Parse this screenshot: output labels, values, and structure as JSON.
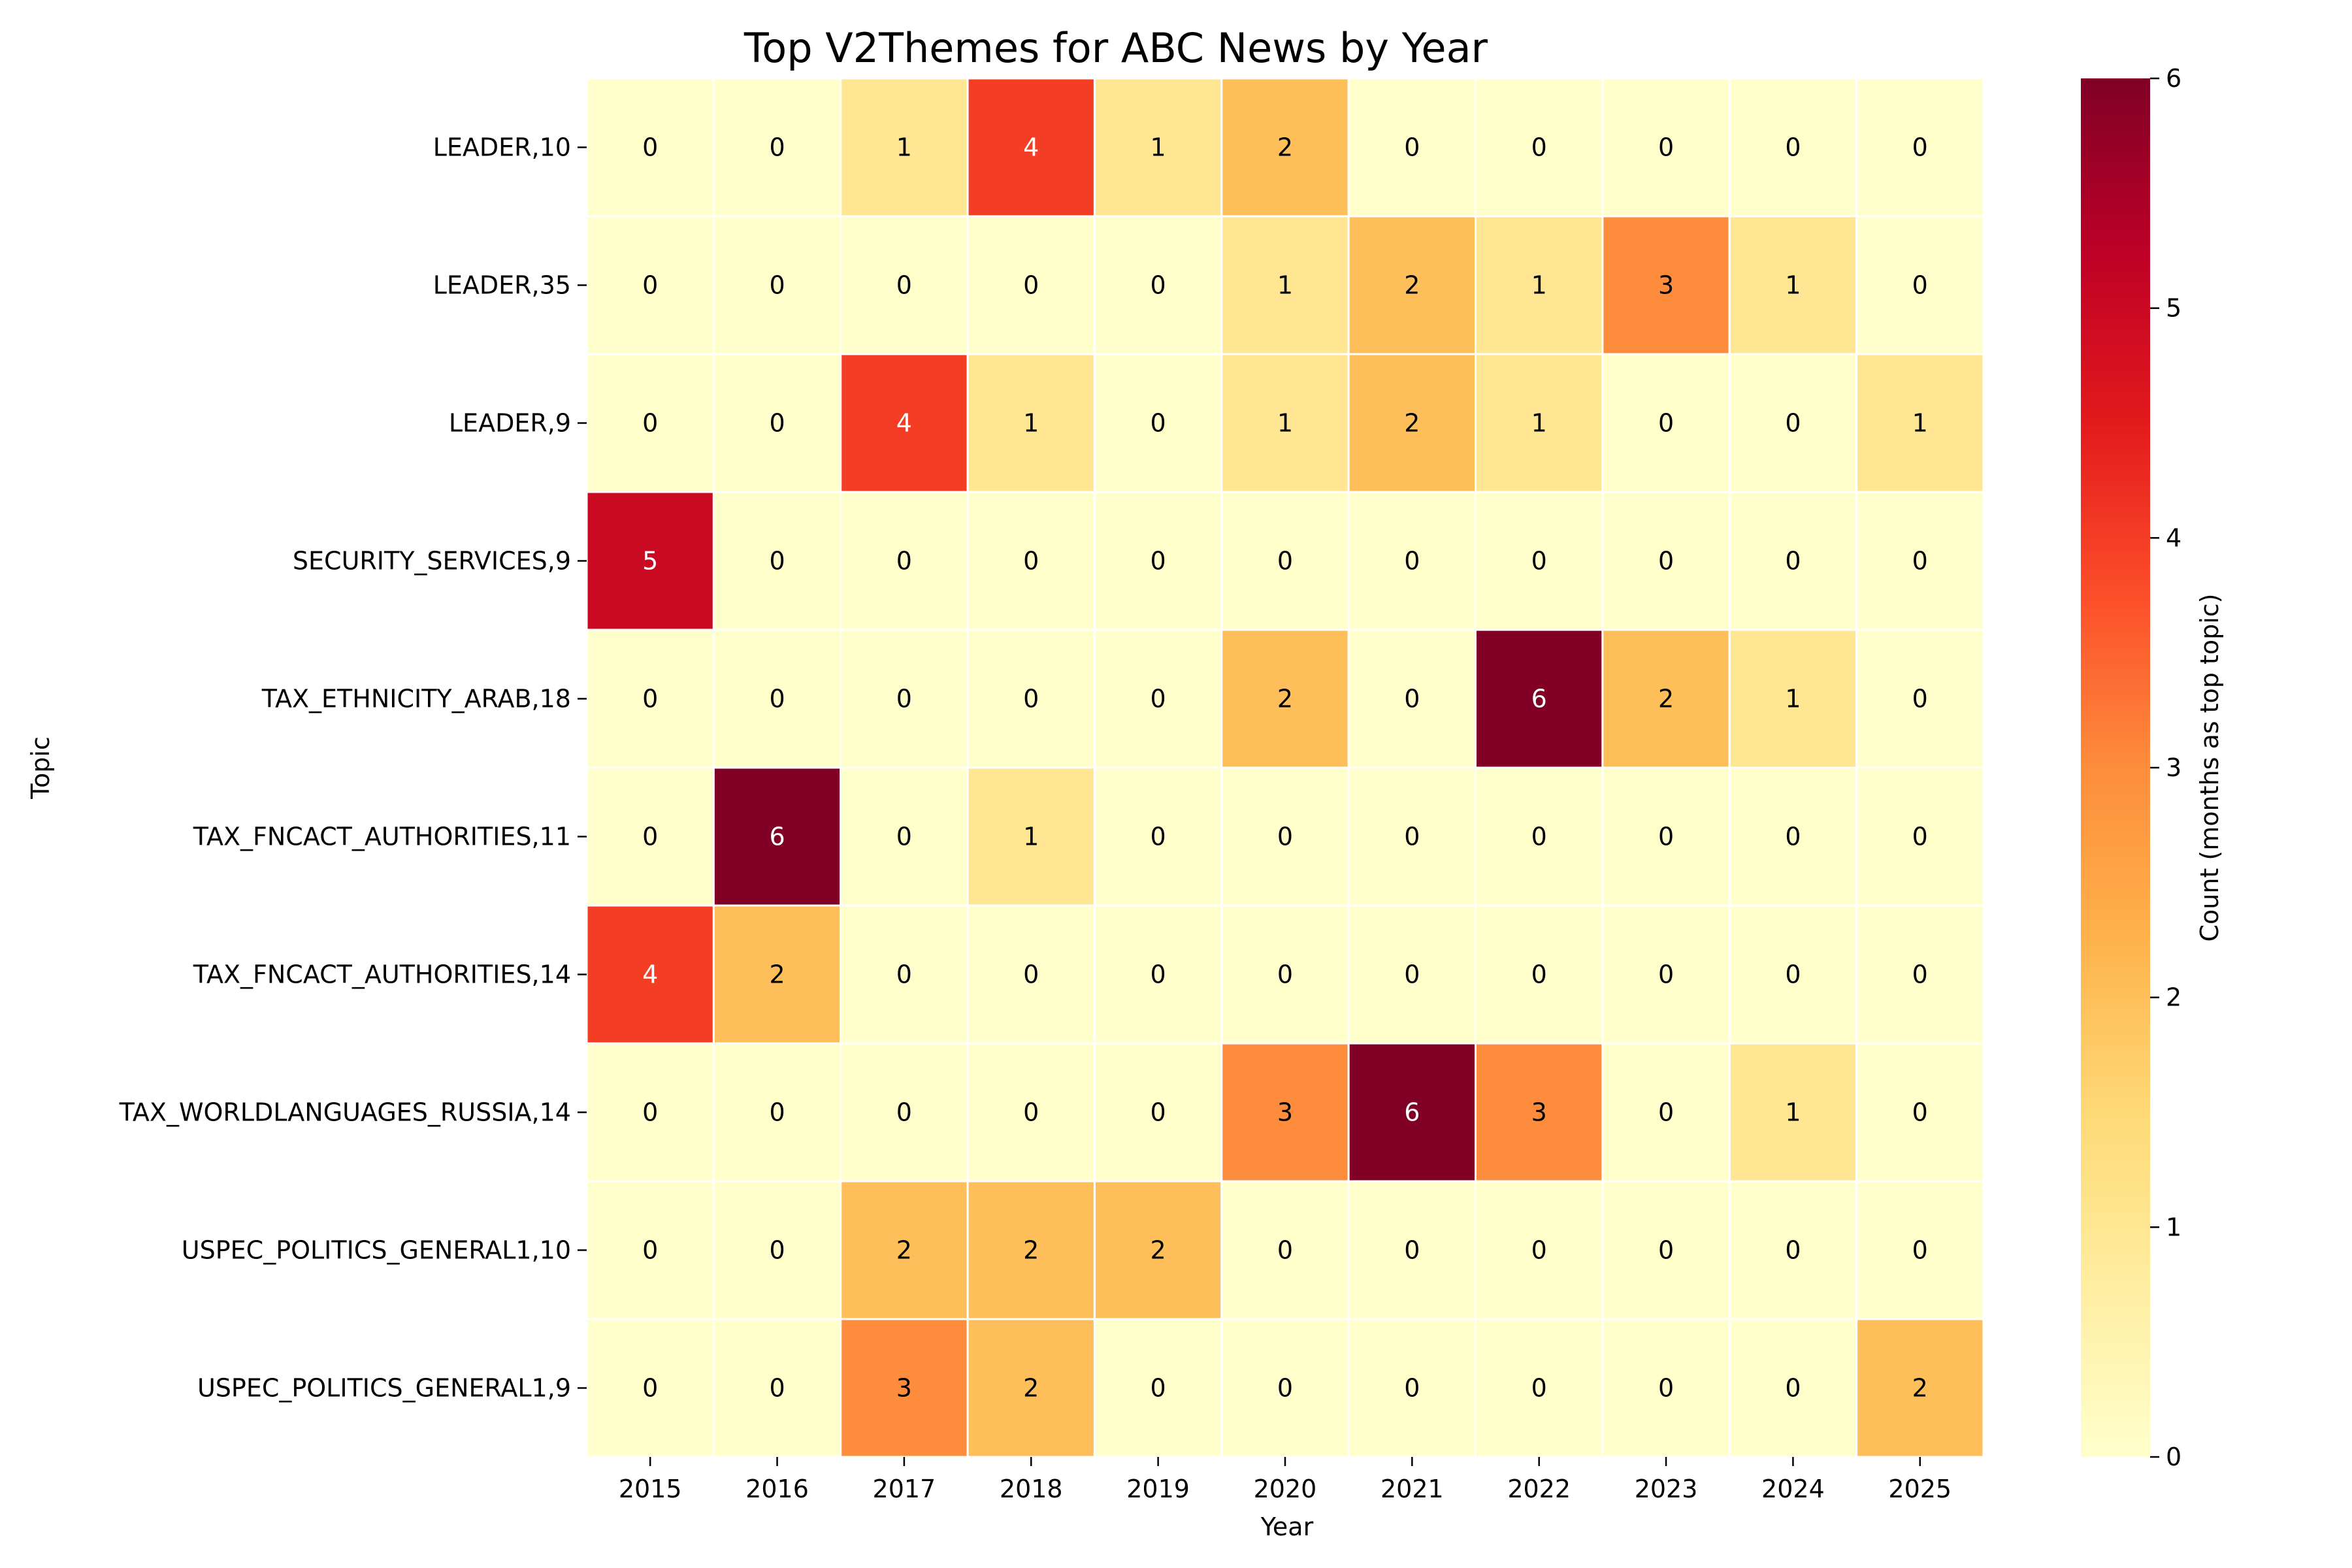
{
  "chart_data": {
    "type": "heatmap",
    "title": "Top V2Themes for ABC News by Year",
    "xlabel": "Year",
    "ylabel": "Topic",
    "x": [
      "2015",
      "2016",
      "2017",
      "2018",
      "2019",
      "2020",
      "2021",
      "2022",
      "2023",
      "2024",
      "2025"
    ],
    "y": [
      "LEADER,10",
      "LEADER,35",
      "LEADER,9",
      "SECURITY_SERVICES,9",
      "TAX_ETHNICITY_ARAB,18",
      "TAX_FNCACT_AUTHORITIES,11",
      "TAX_FNCACT_AUTHORITIES,14",
      "TAX_WORLDLANGUAGES_RUSSIA,14",
      "USPEC_POLITICS_GENERAL1,10",
      "USPEC_POLITICS_GENERAL1,9"
    ],
    "values": [
      [
        0,
        0,
        1,
        4,
        1,
        2,
        0,
        0,
        0,
        0,
        0
      ],
      [
        0,
        0,
        0,
        0,
        0,
        1,
        2,
        1,
        3,
        1,
        0
      ],
      [
        0,
        0,
        4,
        1,
        0,
        1,
        2,
        1,
        0,
        0,
        1
      ],
      [
        5,
        0,
        0,
        0,
        0,
        0,
        0,
        0,
        0,
        0,
        0
      ],
      [
        0,
        0,
        0,
        0,
        0,
        2,
        0,
        6,
        2,
        1,
        0
      ],
      [
        0,
        6,
        0,
        1,
        0,
        0,
        0,
        0,
        0,
        0,
        0
      ],
      [
        4,
        2,
        0,
        0,
        0,
        0,
        0,
        0,
        0,
        0,
        0
      ],
      [
        0,
        0,
        0,
        0,
        0,
        3,
        6,
        3,
        0,
        1,
        0
      ],
      [
        0,
        0,
        2,
        2,
        2,
        0,
        0,
        0,
        0,
        0,
        0
      ],
      [
        0,
        0,
        3,
        2,
        0,
        0,
        0,
        0,
        0,
        0,
        2
      ]
    ],
    "colorbar": {
      "label": "Count (months as top topic)",
      "range": [
        0,
        6
      ],
      "ticks": [
        "0",
        "1",
        "2",
        "3",
        "4",
        "5",
        "6"
      ]
    },
    "colormap": {
      "name": "YlOrRd",
      "stops": [
        "#ffffcc",
        "#ffeda0",
        "#fed976",
        "#feb24c",
        "#fd8d3c",
        "#fc4e2a",
        "#e31a1c",
        "#bd0026",
        "#800026"
      ]
    }
  }
}
